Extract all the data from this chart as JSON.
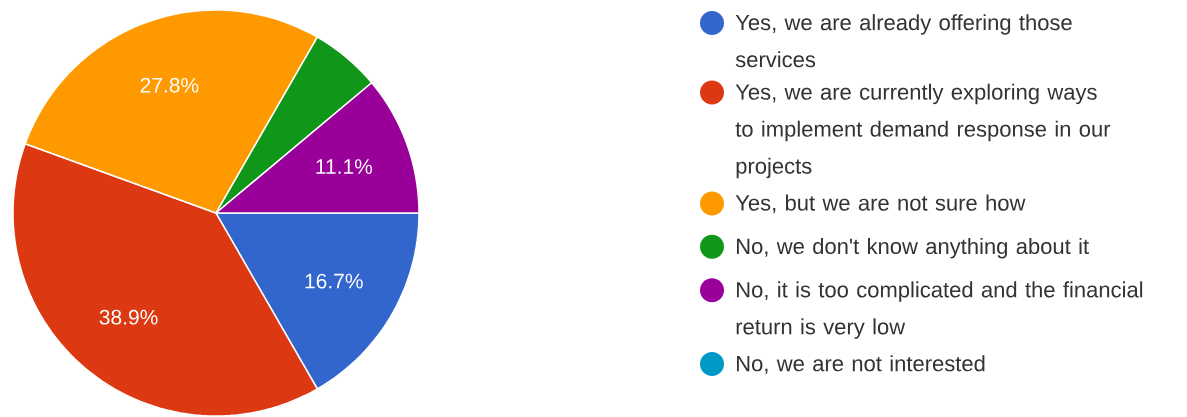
{
  "chart_data": {
    "type": "pie",
    "categories": [
      "Yes, we are already offering those services",
      "Yes, we are currently exploring ways to implement demand response in our projects",
      "Yes, but we are not sure how",
      "No, we don't know anything about it",
      "No, it is too complicated and the financial return is very low",
      "No, we are not interested"
    ],
    "values": [
      16.7,
      38.9,
      27.8,
      5.6,
      11.1,
      0
    ],
    "colors": [
      "#3366cc",
      "#dc3912",
      "#ff9900",
      "#109618",
      "#990099",
      "#0099c6"
    ],
    "value_labels": [
      "16.7%",
      "38.9%",
      "27.8%",
      null,
      "11.1%",
      null
    ],
    "legend": "right"
  }
}
